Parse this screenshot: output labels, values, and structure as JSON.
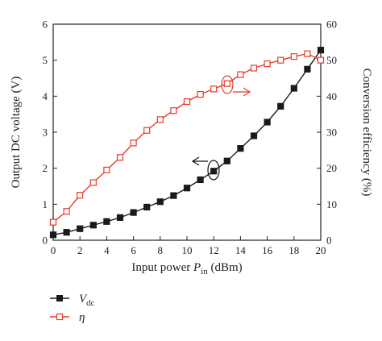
{
  "chart_data": {
    "type": "line",
    "xlabel": "Input power P_in (dBm)",
    "xlabel_parts": {
      "prefix": "Input power ",
      "symbol": "P",
      "subscript": "in",
      "suffix": " (dBm)"
    },
    "ylabel_left": "Output DC voltage (V)",
    "ylabel_right": "Conversion efficiency (%)",
    "xlim": [
      0,
      20
    ],
    "ylim_left": [
      0,
      6
    ],
    "ylim_right": [
      0,
      60
    ],
    "x_ticks": [
      "0",
      "2",
      "4",
      "6",
      "8",
      "10",
      "12",
      "14",
      "16",
      "18",
      "20"
    ],
    "y_left_ticks": [
      "0",
      "1",
      "2",
      "3",
      "4",
      "5",
      "6"
    ],
    "y_right_ticks": [
      "0",
      "10",
      "20",
      "30",
      "40",
      "50",
      "60"
    ],
    "grid": false,
    "legend_position": "bottom-left",
    "x": [
      0,
      1,
      2,
      3,
      4,
      5,
      6,
      7,
      8,
      9,
      10,
      11,
      12,
      13,
      14,
      15,
      16,
      17,
      18,
      19,
      20
    ],
    "series": [
      {
        "name": "V_dc",
        "legend_symbol": "V",
        "legend_sub": "dc",
        "axis": "left",
        "color": "#1a1a1a",
        "marker": "filled-square",
        "values": [
          0.15,
          0.22,
          0.32,
          0.42,
          0.52,
          0.63,
          0.77,
          0.92,
          1.07,
          1.24,
          1.45,
          1.68,
          1.92,
          2.2,
          2.55,
          2.9,
          3.28,
          3.72,
          4.22,
          4.75,
          5.28
        ]
      },
      {
        "name": "η",
        "legend_symbol": "η",
        "legend_sub": "",
        "axis": "right",
        "color": "#e8392b",
        "marker": "open-square",
        "values": [
          5,
          8,
          12.5,
          16,
          19.5,
          23,
          27,
          30.5,
          33.5,
          36,
          38.5,
          40.5,
          42,
          43.5,
          46,
          47.8,
          49,
          50,
          51,
          51.8,
          50
        ]
      }
    ],
    "annotations": [
      {
        "target": "η",
        "at_x": 13,
        "at_y_right": 44,
        "arrow": "right"
      },
      {
        "target": "V_dc",
        "at_x": 12,
        "at_y_left": 1.9,
        "arrow": "left"
      }
    ]
  }
}
